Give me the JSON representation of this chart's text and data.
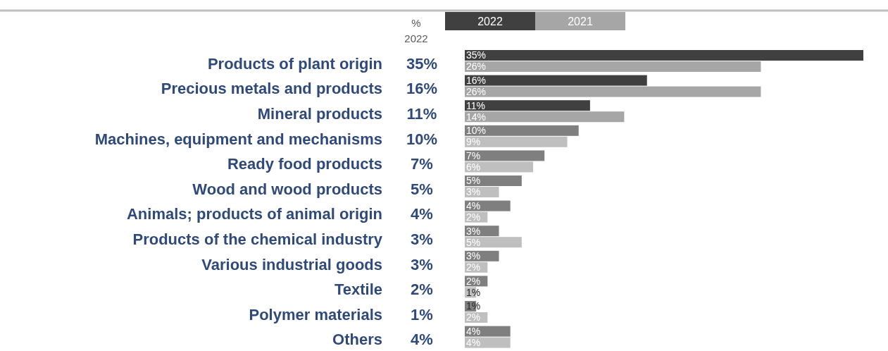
{
  "chart_data": {
    "type": "bar",
    "orientation": "horizontal",
    "annotations": [
      "%"
    ],
    "categories": [
      "Products of plant origin",
      "Precious metals and products",
      "Mineral products",
      "Machines, equipment and mechanisms",
      "Ready food products",
      "Wood and wood products",
      "Animals; products of animal origin",
      "Products of the chemical industry",
      "Various industrial goods",
      "Textile",
      "Polymer materials",
      "Others"
    ],
    "series": [
      {
        "name": "2022",
        "color": "#404040",
        "colors": [
          "#404040",
          "#404040",
          "#404040",
          "#7f7f7f",
          "#7f7f7f",
          "#7f7f7f",
          "#7f7f7f",
          "#7f7f7f",
          "#7f7f7f",
          "#7f7f7f",
          "#7f7f7f",
          "#7f7f7f"
        ],
        "values": [
          35,
          16,
          11,
          10,
          7,
          5,
          4,
          3,
          3,
          2,
          1,
          4
        ],
        "value_labels": [
          "35%",
          "16%",
          "11%",
          "10%",
          "7%",
          "5%",
          "4%",
          "3%",
          "3%",
          "2%",
          "1%",
          "4%"
        ]
      },
      {
        "name": "2021",
        "color": "#a6a6a6",
        "colors": [
          "#a6a6a6",
          "#a6a6a6",
          "#a6a6a6",
          "#bfbfbf",
          "#bfbfbf",
          "#bfbfbf",
          "#bfbfbf",
          "#bfbfbf",
          "#bfbfbf",
          "#bfbfbf",
          "#bfbfbf",
          "#bfbfbf"
        ],
        "values": [
          26,
          26,
          14,
          9,
          6,
          3,
          2,
          5,
          2,
          1,
          2,
          4
        ],
        "value_labels": [
          "26%",
          "26%",
          "14%",
          "9%",
          "6%",
          "3%",
          "2%",
          "5%",
          "2%",
          "1%",
          "2%",
          "4%"
        ]
      }
    ],
    "legend": "top",
    "tick_labels": false
  }
}
